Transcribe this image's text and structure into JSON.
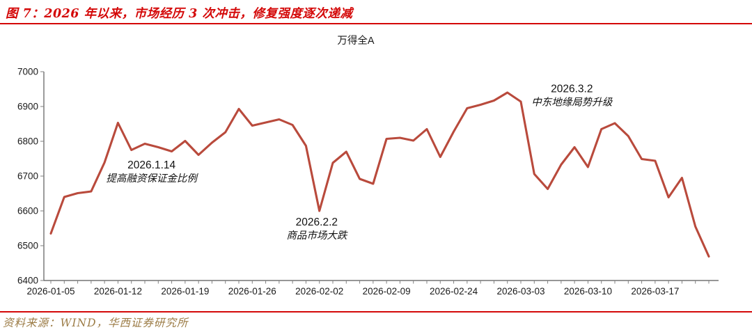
{
  "header": {
    "figure_title": "图 7：2026 年以来，市场经历 3 次冲击，修复强度逐次递减"
  },
  "footer": {
    "source": "资料来源：WIND，华西证券研究所"
  },
  "colors": {
    "title_red": "#D40808",
    "rule_red": "#D40808",
    "line": "#B94A3C",
    "source_gold": "#9C7C46",
    "axis": "#595959",
    "tick": "#7f7f7f",
    "label": "#1a1a1a"
  },
  "chart_data": {
    "type": "line",
    "title": "万得全A",
    "legend": "none",
    "grid": false,
    "ylim": [
      6400,
      7000
    ],
    "yticks": [
      6400,
      6500,
      6600,
      6700,
      6800,
      6900,
      7000
    ],
    "x": [
      "2026-01-05",
      "2026-01-06",
      "2026-01-07",
      "2026-01-08",
      "2026-01-09",
      "2026-01-12",
      "2026-01-13",
      "2026-01-14",
      "2026-01-15",
      "2026-01-16",
      "2026-01-19",
      "2026-01-20",
      "2026-01-21",
      "2026-01-22",
      "2026-01-23",
      "2026-01-26",
      "2026-01-27",
      "2026-01-28",
      "2026-01-29",
      "2026-01-30",
      "2026-02-02",
      "2026-02-03",
      "2026-02-04",
      "2026-02-05",
      "2026-02-06",
      "2026-02-09",
      "2026-02-10",
      "2026-02-11",
      "2026-02-12",
      "2026-02-13",
      "2026-02-24",
      "2026-02-25",
      "2026-02-26",
      "2026-02-27",
      "2026-03-02",
      "2026-03-03",
      "2026-03-04",
      "2026-03-05",
      "2026-03-06",
      "2026-03-09",
      "2026-03-10",
      "2026-03-11",
      "2026-03-12",
      "2026-03-13",
      "2026-03-16",
      "2026-03-17",
      "2026-03-18",
      "2026-03-19",
      "2026-03-20",
      "2026-03-23"
    ],
    "series": [
      {
        "name": "万得全A",
        "values": [
          6535,
          6640,
          6651,
          6656,
          6739,
          6853,
          6775,
          6793,
          6783,
          6771,
          6801,
          6761,
          6796,
          6826,
          6893,
          6845,
          6854,
          6863,
          6847,
          6787,
          6600,
          6738,
          6770,
          6692,
          6678,
          6807,
          6810,
          6802,
          6835,
          6755,
          6828,
          6895,
          6905,
          6917,
          6940,
          6914,
          6706,
          6663,
          6733,
          6783,
          6726,
          6835,
          6852,
          6815,
          6749,
          6744,
          6639,
          6695,
          6555,
          6469
        ]
      }
    ],
    "xtick_indices": [
      0,
      5,
      10,
      15,
      20,
      25,
      30,
      35,
      40,
      45
    ],
    "xtick_labels": [
      "2026-01-05",
      "2026-01-12",
      "2026-01-19",
      "2026-01-26",
      "2026-02-02",
      "2026-02-09",
      "2026-02-24",
      "2026-03-03",
      "2026-03-10",
      "2026-03-17"
    ],
    "annotations": [
      {
        "date": "2026.1.14",
        "label": "提高融资保证金比例",
        "anchor_index": 7.5,
        "anchor_value": 6714
      },
      {
        "date": "2026.2.2",
        "label": "商品市场大跌",
        "anchor_index": 19.8,
        "anchor_value": 6550
      },
      {
        "date": "2026.3.2",
        "label": "中东地缘局势升级",
        "anchor_index": 38.8,
        "anchor_value": 6933
      }
    ]
  }
}
